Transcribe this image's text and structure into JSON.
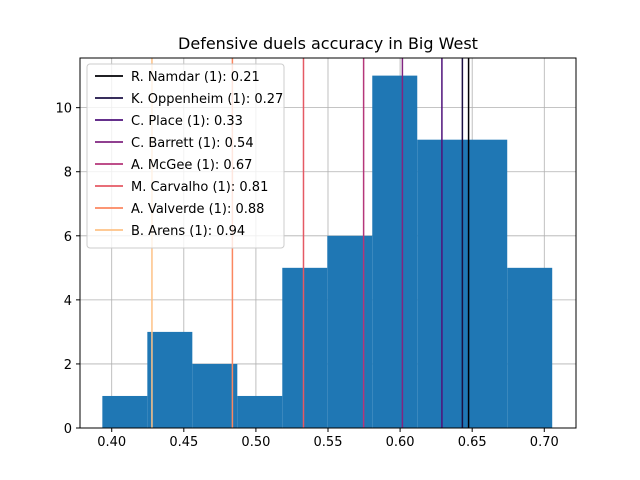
{
  "chart_data": {
    "type": "histogram",
    "title": "Defensive duels accuracy in Big West",
    "xlabel": "",
    "ylabel": "",
    "xlim": [
      0.378,
      0.722
    ],
    "ylim": [
      0,
      11.55
    ],
    "x_ticks": [
      "0.40",
      "0.45",
      "0.50",
      "0.55",
      "0.60",
      "0.65",
      "0.70"
    ],
    "x_tick_values": [
      0.4,
      0.45,
      0.5,
      0.55,
      0.6,
      0.65,
      0.7
    ],
    "y_ticks": [
      "0",
      "2",
      "4",
      "6",
      "8",
      "10"
    ],
    "y_tick_values": [
      0,
      2,
      4,
      6,
      8,
      10
    ],
    "grid": true,
    "bar_color": "#1f77b4",
    "bins": [
      {
        "x0": 0.3935,
        "x1": 0.4247,
        "count": 1
      },
      {
        "x0": 0.4247,
        "x1": 0.4559,
        "count": 3
      },
      {
        "x0": 0.4559,
        "x1": 0.4871,
        "count": 2
      },
      {
        "x0": 0.4871,
        "x1": 0.5183,
        "count": 1
      },
      {
        "x0": 0.5183,
        "x1": 0.5495,
        "count": 5
      },
      {
        "x0": 0.5495,
        "x1": 0.5807,
        "count": 6
      },
      {
        "x0": 0.5807,
        "x1": 0.6119,
        "count": 11
      },
      {
        "x0": 0.6119,
        "x1": 0.6431,
        "count": 9
      },
      {
        "x0": 0.6431,
        "x1": 0.6743,
        "count": 9
      },
      {
        "x0": 0.6743,
        "x1": 0.7055,
        "count": 5
      }
    ],
    "legend_position": "top-left",
    "reference_lines": [
      {
        "label": "R. Namdar (1): 0.21",
        "x": 0.6475,
        "color": "#000004"
      },
      {
        "label": "K. Oppenheim (1): 0.27",
        "x": 0.6432,
        "color": "#1c1044"
      },
      {
        "label": "C. Place (1): 0.33",
        "x": 0.629,
        "color": "#4f127b"
      },
      {
        "label": "C. Barrett (1): 0.54",
        "x": 0.6016,
        "color": "#812581"
      },
      {
        "label": "A. McGee (1): 0.67",
        "x": 0.5747,
        "color": "#b5367a"
      },
      {
        "label": "M. Carvalho (1): 0.81",
        "x": 0.533,
        "color": "#e55964"
      },
      {
        "label": "A. Valverde (1): 0.88",
        "x": 0.4837,
        "color": "#fb8761"
      },
      {
        "label": "B. Arens (1): 0.94",
        "x": 0.4279,
        "color": "#fec287"
      }
    ]
  }
}
